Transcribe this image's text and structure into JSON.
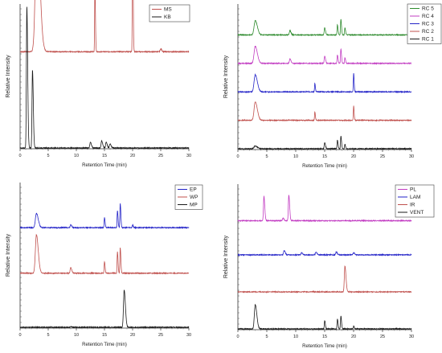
{
  "chart_data": [
    {
      "type": "line",
      "xlabel": "Retention Time (min)",
      "ylabel": "Relative Intensity",
      "xlim": [
        0,
        30
      ],
      "xticks": [
        0,
        5,
        10,
        15,
        20,
        25,
        30
      ],
      "legend_position": "top-right",
      "series": [
        {
          "name": "MS",
          "color": "#c0504d",
          "baseline": 0.68,
          "peaks": [
            [
              3.0,
              0.92,
              0.28
            ],
            [
              13.3,
              0.48,
              0.05
            ],
            [
              20.0,
              1.0,
              0.05
            ],
            [
              25.0,
              0.02,
              0.1
            ]
          ]
        },
        {
          "name": "KB",
          "color": "#1a1a1a",
          "baseline": 0.0,
          "peaks": [
            [
              1.2,
              1.0,
              0.08
            ],
            [
              2.2,
              0.55,
              0.08
            ],
            [
              12.5,
              0.04,
              0.1
            ],
            [
              14.5,
              0.05,
              0.1
            ],
            [
              15.3,
              0.04,
              0.1
            ],
            [
              16.0,
              0.03,
              0.1
            ]
          ]
        }
      ]
    },
    {
      "type": "line",
      "xlabel": "Retention Time (min)",
      "ylabel": "Relative Intensity",
      "xlim": [
        0,
        30
      ],
      "xticks": [
        0,
        5,
        10,
        15,
        20,
        25,
        30
      ],
      "legend_position": "top-right",
      "series": [
        {
          "name": "RC 5",
          "color": "#2e8b2e",
          "baseline": 0.8,
          "peaks": [
            [
              3.0,
              0.1,
              0.2
            ],
            [
              9.0,
              0.03,
              0.1
            ],
            [
              15.0,
              0.05,
              0.08
            ],
            [
              17.2,
              0.07,
              0.06
            ],
            [
              17.8,
              0.11,
              0.06
            ],
            [
              18.5,
              0.05,
              0.06
            ]
          ]
        },
        {
          "name": "RC 4",
          "color": "#c23cc2",
          "baseline": 0.6,
          "peaks": [
            [
              3.0,
              0.12,
              0.2
            ],
            [
              9.0,
              0.03,
              0.1
            ],
            [
              15.0,
              0.05,
              0.08
            ],
            [
              17.2,
              0.06,
              0.06
            ],
            [
              17.8,
              0.1,
              0.06
            ],
            [
              18.5,
              0.04,
              0.06
            ]
          ]
        },
        {
          "name": "RC 3",
          "color": "#2323c8",
          "baseline": 0.4,
          "peaks": [
            [
              3.0,
              0.12,
              0.2
            ],
            [
              13.3,
              0.06,
              0.05
            ],
            [
              20.0,
              0.13,
              0.05
            ]
          ]
        },
        {
          "name": "RC 2",
          "color": "#c0504d",
          "baseline": 0.2,
          "peaks": [
            [
              3.0,
              0.13,
              0.2
            ],
            [
              13.3,
              0.06,
              0.05
            ],
            [
              20.0,
              0.1,
              0.05
            ]
          ]
        },
        {
          "name": "RC 1",
          "color": "#1a1a1a",
          "baseline": 0.0,
          "peaks": [
            [
              3.0,
              0.02,
              0.2
            ],
            [
              15.0,
              0.04,
              0.08
            ],
            [
              17.2,
              0.06,
              0.06
            ],
            [
              17.8,
              0.09,
              0.06
            ],
            [
              18.5,
              0.03,
              0.06
            ]
          ]
        }
      ]
    },
    {
      "type": "line",
      "xlabel": "Retention Time (min)",
      "ylabel": "Relative Intensity",
      "xlim": [
        0,
        30
      ],
      "xticks": [
        0,
        5,
        10,
        15,
        20,
        25,
        30
      ],
      "legend_position": "top-right",
      "series": [
        {
          "name": "EP",
          "color": "#2323c8",
          "baseline": 0.7,
          "peaks": [
            [
              2.9,
              0.1,
              0.18
            ],
            [
              9.0,
              0.02,
              0.1
            ],
            [
              15.0,
              0.07,
              0.06
            ],
            [
              17.3,
              0.12,
              0.06
            ],
            [
              17.8,
              0.17,
              0.06
            ],
            [
              20.0,
              0.02,
              0.06
            ]
          ]
        },
        {
          "name": "WP",
          "color": "#c0504d",
          "baseline": 0.38,
          "peaks": [
            [
              2.9,
              0.27,
              0.18
            ],
            [
              9.0,
              0.04,
              0.1
            ],
            [
              15.0,
              0.08,
              0.06
            ],
            [
              17.3,
              0.15,
              0.06
            ],
            [
              17.8,
              0.18,
              0.06
            ]
          ]
        },
        {
          "name": "MP",
          "color": "#1a1a1a",
          "baseline": 0.0,
          "peaks": [
            [
              18.5,
              0.26,
              0.12
            ],
            [
              9.0,
              0.005,
              0.1
            ]
          ]
        }
      ]
    },
    {
      "type": "line",
      "xlabel": "Retention Time (min)",
      "ylabel": "Relative Intensity",
      "xlim": [
        0,
        30
      ],
      "xticks": [
        0,
        5,
        10,
        15,
        20,
        25,
        30
      ],
      "legend_position": "top-right",
      "series": [
        {
          "name": "PL",
          "color": "#c23cc2",
          "baseline": 0.76,
          "peaks": [
            [
              4.5,
              0.17,
              0.08
            ],
            [
              8.8,
              0.18,
              0.08
            ],
            [
              7.8,
              0.02,
              0.08
            ]
          ]
        },
        {
          "name": "LAM",
          "color": "#2323c8",
          "baseline": 0.52,
          "peaks": [
            [
              8.0,
              0.03,
              0.1
            ],
            [
              11.0,
              0.015,
              0.1
            ],
            [
              13.5,
              0.02,
              0.1
            ],
            [
              17.0,
              0.02,
              0.1
            ],
            [
              20.0,
              0.015,
              0.1
            ]
          ]
        },
        {
          "name": "IR",
          "color": "#c0504d",
          "baseline": 0.26,
          "peaks": [
            [
              18.5,
              0.18,
              0.1
            ]
          ]
        },
        {
          "name": "VENT",
          "color": "#1a1a1a",
          "baseline": 0.0,
          "peaks": [
            [
              3.0,
              0.17,
              0.15
            ],
            [
              15.0,
              0.06,
              0.06
            ],
            [
              17.2,
              0.07,
              0.06
            ],
            [
              17.8,
              0.09,
              0.06
            ],
            [
              20.0,
              0.02,
              0.06
            ]
          ]
        }
      ]
    }
  ]
}
